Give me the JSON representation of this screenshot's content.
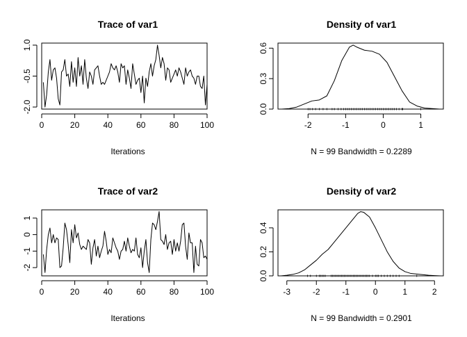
{
  "chart_data": [
    {
      "type": "line",
      "title": "Trace of var1",
      "xlabel": "Iterations",
      "ylabel": "",
      "xlim": [
        0,
        100
      ],
      "ylim": [
        -2.1,
        1.1
      ],
      "xticks": [
        "0",
        "20",
        "40",
        "60",
        "80",
        "100"
      ],
      "yticks": [
        "-2.0",
        "-0.5",
        "1.0"
      ],
      "x": [
        1,
        2,
        3,
        4,
        5,
        6,
        7,
        8,
        9,
        10,
        11,
        12,
        13,
        14,
        15,
        16,
        17,
        18,
        19,
        20,
        21,
        22,
        23,
        24,
        25,
        26,
        27,
        28,
        29,
        30,
        31,
        32,
        33,
        34,
        35,
        36,
        37,
        38,
        39,
        40,
        41,
        42,
        43,
        44,
        45,
        46,
        47,
        48,
        49,
        50,
        51,
        52,
        53,
        54,
        55,
        56,
        57,
        58,
        59,
        60,
        61,
        62,
        63,
        64,
        65,
        66,
        67,
        68,
        69,
        70,
        71,
        72,
        73,
        74,
        75,
        76,
        77,
        78,
        79,
        80,
        81,
        82,
        83,
        84,
        85,
        86,
        87,
        88,
        89,
        90,
        91,
        92,
        93,
        94,
        95,
        96,
        97,
        98,
        99,
        100
      ],
      "series": [
        {
          "values": [
            -0.8,
            -2.0,
            -1.4,
            -0.3,
            0.3,
            -0.7,
            -0.2,
            -0.1,
            -0.6,
            -1.6,
            -1.9,
            -0.3,
            -0.2,
            0.3,
            -0.5,
            -0.4,
            -1.0,
            0.2,
            -0.8,
            -0.1,
            -1.0,
            0.4,
            -0.5,
            0.0,
            -0.9,
            0.3,
            -0.6,
            -1.1,
            -0.3,
            -0.5,
            -0.9,
            -0.2,
            -0.1,
            0.0,
            -0.5,
            -0.9,
            -0.8,
            -0.9,
            -0.7,
            -0.5,
            -0.3,
            0.1,
            -0.1,
            -0.2,
            0.0,
            -0.3,
            -0.8,
            0.1,
            -0.1,
            0.0,
            -0.9,
            -0.2,
            -0.6,
            -1.1,
            0.1,
            -0.4,
            -0.9,
            -0.7,
            -0.6,
            -1.3,
            -0.5,
            -1.8,
            -0.6,
            -1.0,
            -0.3,
            0.1,
            -0.5,
            0.0,
            0.3,
            1.0,
            0.5,
            -0.1,
            0.4,
            0.1,
            -0.7,
            -0.1,
            -0.2,
            -0.8,
            -0.6,
            -0.4,
            -0.2,
            -0.5,
            -0.1,
            -0.3,
            -0.6,
            -0.9,
            -0.1,
            -0.5,
            -0.3,
            -0.2,
            -0.5,
            -0.6,
            -0.9,
            -0.5,
            -0.5,
            -1.0,
            -1.1,
            -0.5,
            -1.9,
            -0.9
          ]
        }
      ]
    },
    {
      "type": "line",
      "title": "Density of var1",
      "xlabel": "N = 99   Bandwidth = 0.2289",
      "ylabel": "",
      "xlim": [
        -2.8,
        1.6
      ],
      "ylim": [
        0,
        0.65
      ],
      "xticks": [
        "-2",
        "-1",
        "0",
        "1"
      ],
      "yticks": [
        "0.0",
        "0.3",
        "0.6"
      ],
      "x": [
        -2.7,
        -2.5,
        -2.3,
        -2.1,
        -1.9,
        -1.7,
        -1.5,
        -1.3,
        -1.1,
        -0.9,
        -0.8,
        -0.7,
        -0.5,
        -0.3,
        -0.1,
        0.1,
        0.3,
        0.5,
        0.7,
        0.9,
        1.1,
        1.3,
        1.5
      ],
      "series": [
        {
          "values": [
            0.0,
            0.005,
            0.02,
            0.05,
            0.08,
            0.09,
            0.13,
            0.28,
            0.48,
            0.61,
            0.63,
            0.61,
            0.58,
            0.57,
            0.54,
            0.46,
            0.32,
            0.18,
            0.07,
            0.03,
            0.01,
            0.005,
            0.0
          ]
        }
      ],
      "rug": [
        -2.0,
        -1.95,
        -1.88,
        -1.8,
        -1.7,
        -1.6,
        -1.5,
        -1.36,
        -1.3,
        -1.2,
        -1.12,
        -1.05,
        -1.0,
        -0.95,
        -0.9,
        -0.85,
        -0.8,
        -0.75,
        -0.7,
        -0.65,
        -0.6,
        -0.55,
        -0.5,
        -0.45,
        -0.4,
        -0.35,
        -0.3,
        -0.25,
        -0.2,
        -0.15,
        -0.1,
        -0.05,
        0.0,
        0.05,
        0.1,
        0.15,
        0.2,
        0.25,
        0.3,
        0.35,
        0.42,
        0.5,
        0.52,
        1.0
      ]
    },
    {
      "type": "line",
      "title": "Trace of var2",
      "xlabel": "Iterations",
      "ylabel": "",
      "xlim": [
        0,
        100
      ],
      "ylim": [
        -2.5,
        1.5
      ],
      "xticks": [
        "0",
        "20",
        "40",
        "60",
        "80",
        "100"
      ],
      "yticks": [
        "-2",
        "-1",
        "0",
        "1"
      ],
      "x": [
        1,
        2,
        3,
        4,
        5,
        6,
        7,
        8,
        9,
        10,
        11,
        12,
        13,
        14,
        15,
        16,
        17,
        18,
        19,
        20,
        21,
        22,
        23,
        24,
        25,
        26,
        27,
        28,
        29,
        30,
        31,
        32,
        33,
        34,
        35,
        36,
        37,
        38,
        39,
        40,
        41,
        42,
        43,
        44,
        45,
        46,
        47,
        48,
        49,
        50,
        51,
        52,
        53,
        54,
        55,
        56,
        57,
        58,
        59,
        60,
        61,
        62,
        63,
        64,
        65,
        66,
        67,
        68,
        69,
        70,
        71,
        72,
        73,
        74,
        75,
        76,
        77,
        78,
        79,
        80,
        81,
        82,
        83,
        84,
        85,
        86,
        87,
        88,
        89,
        90,
        91,
        92,
        93,
        94,
        95,
        96,
        97,
        98,
        99,
        100
      ],
      "series": [
        {
          "values": [
            -1.2,
            -2.3,
            -0.9,
            0.0,
            0.4,
            -0.5,
            0.0,
            -0.5,
            -0.2,
            -0.3,
            -2.0,
            -1.9,
            -0.8,
            0.7,
            0.3,
            -0.6,
            -1.7,
            0.3,
            -0.5,
            0.6,
            -0.2,
            0.1,
            -0.6,
            -0.9,
            -0.7,
            -0.8,
            -0.9,
            -0.3,
            -0.5,
            -1.8,
            -0.8,
            -0.3,
            -1.3,
            -0.7,
            -1.4,
            -1.0,
            -0.7,
            0.2,
            -0.4,
            -1.2,
            -0.9,
            -1.1,
            -0.2,
            -0.5,
            -0.8,
            -1.0,
            -1.5,
            -1.0,
            -0.9,
            -0.4,
            -1.0,
            -0.2,
            -0.7,
            -1.1,
            -0.9,
            -1.0,
            -0.2,
            -1.2,
            -1.4,
            -0.8,
            -2.0,
            -1.0,
            -0.3,
            -1.7,
            -2.3,
            -0.3,
            0.7,
            0.6,
            0.3,
            0.8,
            1.4,
            -0.3,
            -0.4,
            -0.6,
            0.0,
            -0.9,
            -0.5,
            -0.4,
            -1.2,
            -0.3,
            -1.0,
            -0.5,
            -1.0,
            -0.4,
            0.6,
            0.7,
            -0.7,
            -1.5,
            0.1,
            -0.5,
            -0.5,
            -2.3,
            -0.7,
            -1.8,
            -1.9,
            -0.3,
            -0.5,
            -1.4,
            -1.3,
            -1.5
          ]
        }
      ]
    },
    {
      "type": "line",
      "title": "Density of var2",
      "xlabel": "N = 99   Bandwidth = 0.2901",
      "ylabel": "",
      "xlim": [
        -3.3,
        2.3
      ],
      "ylim": [
        0,
        0.55
      ],
      "xticks": [
        "-3",
        "-2",
        "-1",
        "0",
        "1",
        "2"
      ],
      "yticks": [
        "0.0",
        "0.2",
        "0.4"
      ],
      "x": [
        -3.2,
        -3.0,
        -2.8,
        -2.6,
        -2.4,
        -2.2,
        -2.0,
        -1.8,
        -1.6,
        -1.4,
        -1.2,
        -1.0,
        -0.8,
        -0.6,
        -0.5,
        -0.4,
        -0.2,
        0.0,
        0.2,
        0.4,
        0.6,
        0.8,
        1.0,
        1.2,
        1.4,
        1.6,
        1.8,
        2.0,
        2.2
      ],
      "series": [
        {
          "values": [
            0.0,
            0.005,
            0.012,
            0.025,
            0.05,
            0.09,
            0.13,
            0.18,
            0.22,
            0.28,
            0.34,
            0.4,
            0.46,
            0.52,
            0.535,
            0.53,
            0.49,
            0.4,
            0.3,
            0.2,
            0.12,
            0.065,
            0.035,
            0.02,
            0.015,
            0.01,
            0.005,
            0.002,
            0.0
          ]
        }
      ],
      "rug": [
        -2.3,
        -2.2,
        -2.0,
        -1.9,
        -1.85,
        -1.8,
        -1.75,
        -1.7,
        -1.5,
        -1.45,
        -1.4,
        -1.35,
        -1.3,
        -1.25,
        -1.2,
        -1.15,
        -1.1,
        -1.05,
        -1.0,
        -0.95,
        -0.9,
        -0.85,
        -0.8,
        -0.75,
        -0.7,
        -0.65,
        -0.6,
        -0.55,
        -0.5,
        -0.45,
        -0.4,
        -0.35,
        -0.3,
        -0.25,
        -0.2,
        -0.1,
        0.0,
        0.05,
        0.1,
        0.2,
        0.3,
        0.4,
        0.5,
        0.6,
        0.7,
        0.8,
        1.4
      ]
    }
  ]
}
